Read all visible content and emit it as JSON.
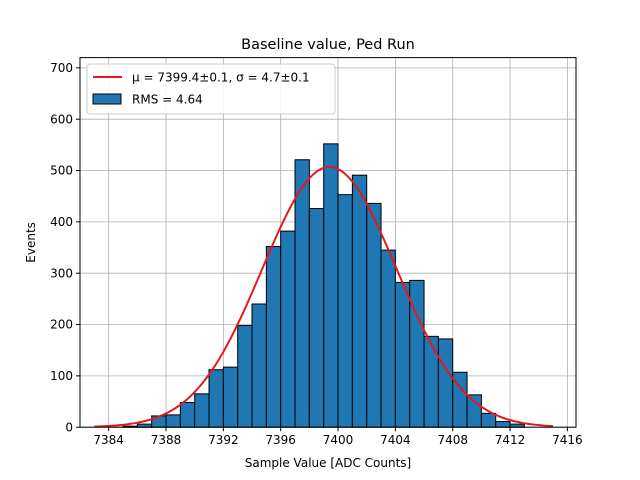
{
  "chart_data": {
    "type": "bar",
    "subtype": "histogram",
    "title": "Baseline value, Ped Run",
    "xlabel": "Sample Value [ADC Counts]",
    "ylabel": "Events",
    "xlim": [
      7382.0,
      7416.6
    ],
    "ylim": [
      0,
      720
    ],
    "xticks": [
      7384,
      7388,
      7392,
      7396,
      7400,
      7404,
      7408,
      7412,
      7416
    ],
    "yticks": [
      0,
      100,
      200,
      300,
      400,
      500,
      600,
      700
    ],
    "grid": true,
    "legend_position": "top-left",
    "bin_width": 1,
    "bins": [
      {
        "x0": 7385,
        "x1": 7386,
        "value": 2
      },
      {
        "x0": 7386,
        "x1": 7387,
        "value": 6
      },
      {
        "x0": 7387,
        "x1": 7388,
        "value": 22
      },
      {
        "x0": 7388,
        "x1": 7389,
        "value": 24
      },
      {
        "x0": 7389,
        "x1": 7390,
        "value": 48
      },
      {
        "x0": 7390,
        "x1": 7391,
        "value": 65
      },
      {
        "x0": 7391,
        "x1": 7392,
        "value": 112
      },
      {
        "x0": 7392,
        "x1": 7393,
        "value": 117
      },
      {
        "x0": 7393,
        "x1": 7394,
        "value": 198
      },
      {
        "x0": 7394,
        "x1": 7395,
        "value": 240
      },
      {
        "x0": 7395,
        "x1": 7396,
        "value": 352
      },
      {
        "x0": 7396,
        "x1": 7397,
        "value": 382
      },
      {
        "x0": 7397,
        "x1": 7398,
        "value": 521
      },
      {
        "x0": 7398,
        "x1": 7399,
        "value": 426
      },
      {
        "x0": 7399,
        "x1": 7400,
        "value": 552
      },
      {
        "x0": 7400,
        "x1": 7401,
        "value": 453
      },
      {
        "x0": 7401,
        "x1": 7402,
        "value": 491
      },
      {
        "x0": 7402,
        "x1": 7403,
        "value": 436
      },
      {
        "x0": 7403,
        "x1": 7404,
        "value": 345
      },
      {
        "x0": 7404,
        "x1": 7405,
        "value": 282
      },
      {
        "x0": 7405,
        "x1": 7406,
        "value": 286
      },
      {
        "x0": 7406,
        "x1": 7407,
        "value": 177
      },
      {
        "x0": 7407,
        "x1": 7408,
        "value": 172
      },
      {
        "x0": 7408,
        "x1": 7409,
        "value": 107
      },
      {
        "x0": 7409,
        "x1": 7410,
        "value": 63
      },
      {
        "x0": 7410,
        "x1": 7411,
        "value": 27
      },
      {
        "x0": 7411,
        "x1": 7412,
        "value": 11
      },
      {
        "x0": 7412,
        "x1": 7413,
        "value": 6
      }
    ],
    "fit": {
      "type": "gaussian",
      "mu": 7399.4,
      "sigma": 4.7,
      "amplitude": 507,
      "x_range": [
        7383,
        7415
      ]
    },
    "legend": [
      {
        "label": "μ = 7399.4±0.1, σ = 4.7±0.1",
        "kind": "line",
        "color": "#e31a1c"
      },
      {
        "label": "RMS = 4.64",
        "kind": "bar",
        "color": "#1f77b4"
      }
    ],
    "colors": {
      "bar_fill": "#1f77b4",
      "bar_edge": "#000000",
      "fit_line": "#e31a1c",
      "grid": "#b0b0b0"
    }
  }
}
